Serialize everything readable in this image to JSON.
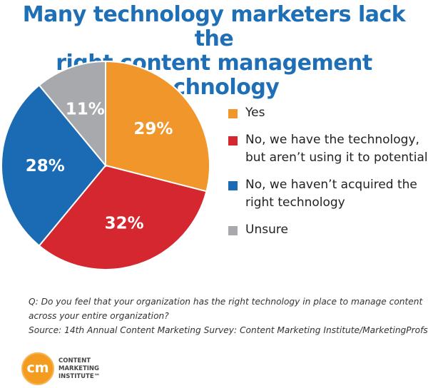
{
  "title": {
    "line1": "Many technology marketers lack the",
    "line2": "right content management technology"
  },
  "chart_data": {
    "type": "pie",
    "slices": [
      {
        "label": "Yes",
        "value": 29,
        "display": "29%",
        "color": "#f0962a"
      },
      {
        "label": "No, we have the technology,\nbut aren’t using it to potential",
        "value": 32,
        "display": "32%",
        "color": "#d5272f"
      },
      {
        "label": "No, we haven’t acquired the\nright technology",
        "value": 28,
        "display": "28%",
        "color": "#1a6bb4"
      },
      {
        "label": "Unsure",
        "value": 11,
        "display": "11%",
        "color": "#a7a9ac"
      }
    ],
    "start_angle_deg": 0,
    "direction": "clockwise",
    "legend_position": "right"
  },
  "note": {
    "question_line1": "Q: Do you feel that your organization has the right technology in place to manage content",
    "question_line2": "across your entire organization?",
    "source": "Source: 14th Annual Content Marketing Survey: Content Marketing Institute/MarketingProfs"
  },
  "logo": {
    "mark": "cm",
    "line1": "CONTENT",
    "line2": "MARKETING",
    "line3": "INSTITUTE™",
    "color": "#f39c1f"
  }
}
